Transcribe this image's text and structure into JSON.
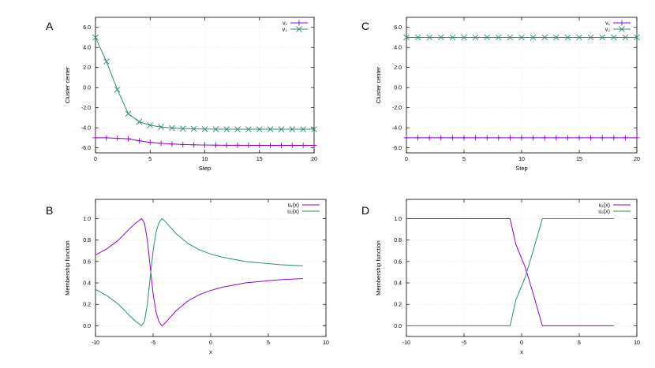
{
  "colors": {
    "purple": "#9400d3",
    "green": "#2e8b72",
    "grid": "#e4e4e4",
    "frame": "#000000"
  },
  "chart_data": [
    {
      "panel": "A",
      "type": "line",
      "xlabel": "Step",
      "ylabel": "Cluster center",
      "xlim": [
        0,
        20
      ],
      "ylim": [
        -6.5,
        7.0
      ],
      "xticks": [
        0,
        5,
        10,
        15,
        20
      ],
      "xtick_labels": [
        "0",
        "5",
        "10",
        "15",
        "20"
      ],
      "yticks": [
        -6,
        -4,
        -2,
        0,
        2,
        4,
        6
      ],
      "ytick_labels": [
        "-6.0",
        "-4.0",
        "-2.0",
        "0.0",
        "2.0",
        "4.0",
        "6.0"
      ],
      "grid": true,
      "legend_position": "top-right",
      "x": [
        0,
        1,
        2,
        3,
        4,
        5,
        6,
        7,
        8,
        9,
        10,
        11,
        12,
        13,
        14,
        15,
        16,
        17,
        18,
        19,
        20
      ],
      "series": [
        {
          "name": "v₁",
          "marker": "plus",
          "color": "#9400d3",
          "values": [
            -5.0,
            -5.0,
            -5.05,
            -5.1,
            -5.3,
            -5.45,
            -5.55,
            -5.62,
            -5.67,
            -5.7,
            -5.72,
            -5.73,
            -5.74,
            -5.74,
            -5.75,
            -5.75,
            -5.75,
            -5.75,
            -5.75,
            -5.75,
            -5.75
          ]
        },
        {
          "name": "v₂",
          "marker": "cross",
          "color": "#2e8b72",
          "values": [
            5.0,
            2.6,
            -0.2,
            -2.6,
            -3.4,
            -3.75,
            -3.92,
            -4.02,
            -4.08,
            -4.11,
            -4.13,
            -4.14,
            -4.15,
            -4.15,
            -4.15,
            -4.15,
            -4.15,
            -4.15,
            -4.15,
            -4.15,
            -4.15
          ]
        }
      ]
    },
    {
      "panel": "C",
      "type": "line",
      "xlabel": "Step",
      "ylabel": "Cluster center",
      "xlim": [
        0,
        20
      ],
      "ylim": [
        -6.5,
        7.0
      ],
      "xticks": [
        0,
        5,
        10,
        15,
        20
      ],
      "xtick_labels": [
        "0",
        "5",
        "10",
        "15",
        "20"
      ],
      "yticks": [
        -6,
        -4,
        -2,
        0,
        2,
        4,
        6
      ],
      "ytick_labels": [
        "-6.0",
        "-4.0",
        "-2.0",
        "0.0",
        "2.0",
        "4.0",
        "6.0"
      ],
      "grid": true,
      "legend_position": "top-right",
      "x": [
        0,
        1,
        2,
        3,
        4,
        5,
        6,
        7,
        8,
        9,
        10,
        11,
        12,
        13,
        14,
        15,
        16,
        17,
        18,
        19,
        20
      ],
      "series": [
        {
          "name": "v₁",
          "marker": "plus",
          "color": "#9400d3",
          "values": [
            -5,
            -5,
            -5,
            -5,
            -5,
            -5,
            -5,
            -5,
            -5,
            -5,
            -5,
            -5,
            -5,
            -5,
            -5,
            -5,
            -5,
            -5,
            -5,
            -5,
            -5
          ]
        },
        {
          "name": "v₂",
          "marker": "cross",
          "color": "#2e8b72",
          "values": [
            5,
            5,
            5,
            5,
            5,
            5,
            5,
            5,
            5,
            5,
            5,
            5,
            5,
            5,
            5,
            5,
            5,
            5,
            5,
            5,
            5
          ]
        }
      ]
    },
    {
      "panel": "B",
      "type": "line",
      "xlabel": "x",
      "ylabel": "Membership function",
      "xlim": [
        -10,
        10
      ],
      "ylim": [
        -0.1,
        1.18
      ],
      "xticks": [
        -10,
        -5,
        0,
        5,
        10
      ],
      "xtick_labels": [
        "-10",
        "-5",
        "0",
        "5",
        "10"
      ],
      "yticks": [
        0,
        0.2,
        0.4,
        0.6,
        0.8,
        1.0
      ],
      "ytick_labels": [
        "0.0",
        "0.2",
        "0.4",
        "0.6",
        "0.8",
        "1.0"
      ],
      "grid": true,
      "legend_position": "top-right",
      "x": [
        -10,
        -9,
        -8,
        -7,
        -6.5,
        -6,
        -5.75,
        -5.5,
        -5.25,
        -5,
        -4.75,
        -4.5,
        -4.25,
        -4,
        -3.5,
        -3,
        -2,
        -1,
        0,
        1,
        2,
        3,
        4,
        5,
        6,
        7,
        8
      ],
      "series": [
        {
          "name": "u₁(x)",
          "color": "#9400d3",
          "values": [
            0.66,
            0.72,
            0.8,
            0.91,
            0.96,
            1.0,
            0.96,
            0.8,
            0.55,
            0.3,
            0.13,
            0.04,
            0.0,
            0.02,
            0.08,
            0.14,
            0.23,
            0.29,
            0.33,
            0.36,
            0.38,
            0.4,
            0.41,
            0.42,
            0.43,
            0.435,
            0.44
          ]
        },
        {
          "name": "u₂(x)",
          "color": "#2e8b72",
          "values": [
            0.34,
            0.28,
            0.2,
            0.09,
            0.04,
            0.0,
            0.04,
            0.2,
            0.45,
            0.7,
            0.87,
            0.96,
            1.0,
            0.98,
            0.92,
            0.86,
            0.77,
            0.71,
            0.67,
            0.64,
            0.62,
            0.6,
            0.59,
            0.58,
            0.57,
            0.565,
            0.56
          ]
        }
      ]
    },
    {
      "panel": "D",
      "type": "line",
      "xlabel": "x",
      "ylabel": "Membership function",
      "xlim": [
        -10,
        10
      ],
      "ylim": [
        -0.1,
        1.18
      ],
      "xticks": [
        -10,
        -5,
        0,
        5,
        10
      ],
      "xtick_labels": [
        "-10",
        "-5",
        "0",
        "5",
        "10"
      ],
      "yticks": [
        0,
        0.2,
        0.4,
        0.6,
        0.8,
        1.0
      ],
      "ytick_labels": [
        "0.0",
        "0.2",
        "0.4",
        "0.6",
        "0.8",
        "1.0"
      ],
      "grid": true,
      "legend_position": "top-right",
      "x": [
        -10,
        -1,
        -0.5,
        0.3,
        1,
        1.8,
        8
      ],
      "series": [
        {
          "name": "u₁(x)",
          "color": "#9400d3",
          "values": [
            1.0,
            1.0,
            0.76,
            0.55,
            0.3,
            0.0,
            0.0
          ]
        },
        {
          "name": "u₂(x)",
          "color": "#2e8b72",
          "values": [
            0.0,
            0.0,
            0.24,
            0.45,
            0.7,
            1.0,
            1.0
          ]
        }
      ]
    }
  ]
}
